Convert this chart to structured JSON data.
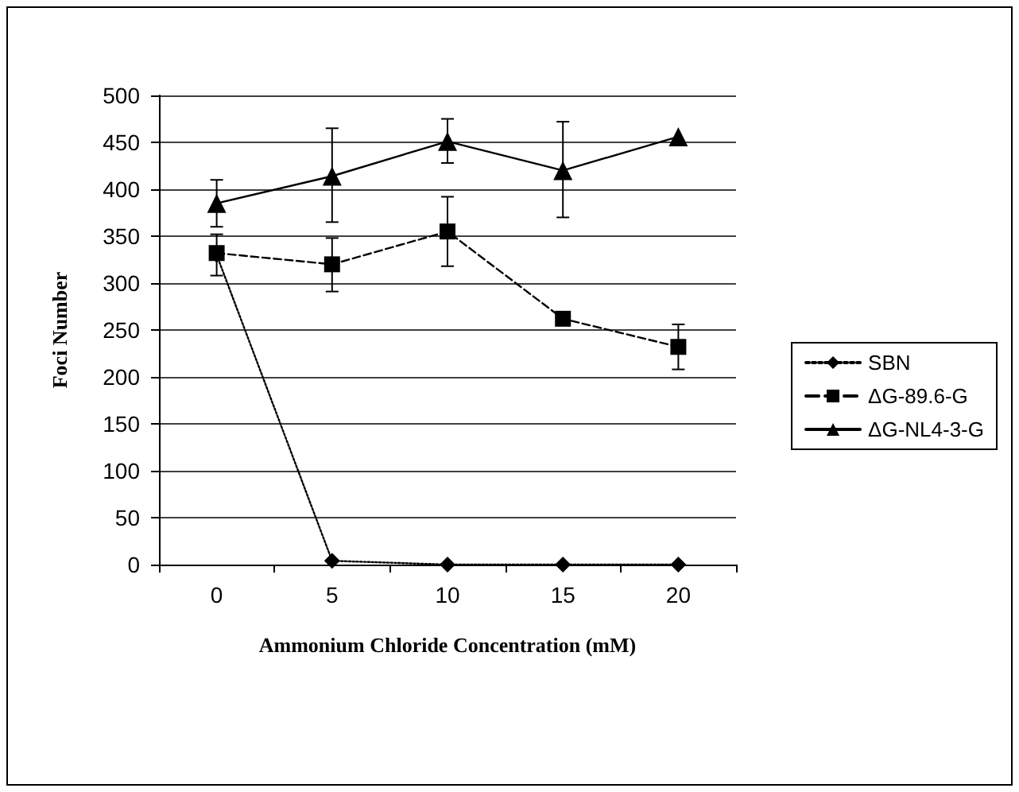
{
  "chart_data": {
    "type": "line",
    "xlabel": "Ammonium Chloride Concentration (mM)",
    "ylabel": "Foci Number",
    "categories": [
      "0",
      "5",
      "10",
      "15",
      "20"
    ],
    "ylim": [
      0,
      500
    ],
    "yticks": [
      0,
      50,
      100,
      150,
      200,
      250,
      300,
      350,
      400,
      450,
      500
    ],
    "grid": "y",
    "legend": "right",
    "series": [
      {
        "name": "SBN",
        "color": "#000000",
        "marker": "diamond",
        "line_style": "dotted",
        "values": [
          330,
          4,
          0,
          0,
          0
        ]
      },
      {
        "name": "ΔG-89.6-G",
        "color": "#000000",
        "marker": "square",
        "line_style": "dashed",
        "values": [
          332,
          320,
          355,
          262,
          232
        ],
        "errors": [
          [
            308,
            352
          ],
          [
            291,
            348
          ],
          [
            318,
            392
          ],
          null,
          [
            208,
            256
          ]
        ]
      },
      {
        "name": "ΔG-NL4-3-G",
        "color": "#000000",
        "marker": "triangle",
        "line_style": "solid",
        "values": [
          385,
          414,
          451,
          420,
          456
        ],
        "errors": [
          [
            360,
            410
          ],
          [
            365,
            465
          ],
          [
            428,
            475
          ],
          [
            370,
            472
          ],
          null
        ]
      }
    ]
  }
}
